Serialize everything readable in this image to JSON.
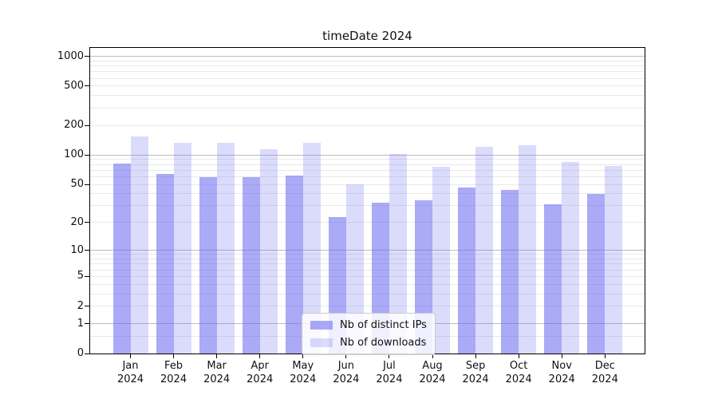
{
  "chart_data": {
    "type": "bar",
    "title": "timeDate 2024",
    "categories": [
      "Jan 2024",
      "Feb 2024",
      "Mar 2024",
      "Apr 2024",
      "May 2024",
      "Jun 2024",
      "Jul 2024",
      "Aug 2024",
      "Sep 2024",
      "Oct 2024",
      "Nov 2024",
      "Dec 2024"
    ],
    "series": [
      {
        "name": "Nb of distinct IPs",
        "color": "rgba(100,100,240,0.55)",
        "values": [
          82,
          64,
          59,
          59,
          61,
          23,
          32,
          34,
          46,
          44,
          31,
          40
        ]
      },
      {
        "name": "Nb of downloads",
        "color": "rgba(100,100,240,0.23)",
        "values": [
          155,
          133,
          133,
          115,
          133,
          50,
          103,
          76,
          121,
          126,
          85,
          77
        ]
      }
    ],
    "yscale": "log1p",
    "yticks": [
      0,
      1,
      2,
      5,
      10,
      20,
      50,
      100,
      200,
      500,
      1000
    ],
    "ylim": [
      0,
      1232
    ],
    "xlabel": "",
    "ylabel": "",
    "grid": true,
    "legend_position": "lower center",
    "colors": {
      "major_gridline": "#bdbdbd",
      "minor_gridline": "#e9e9e9",
      "axis": "#000000",
      "text": "#111111"
    }
  }
}
